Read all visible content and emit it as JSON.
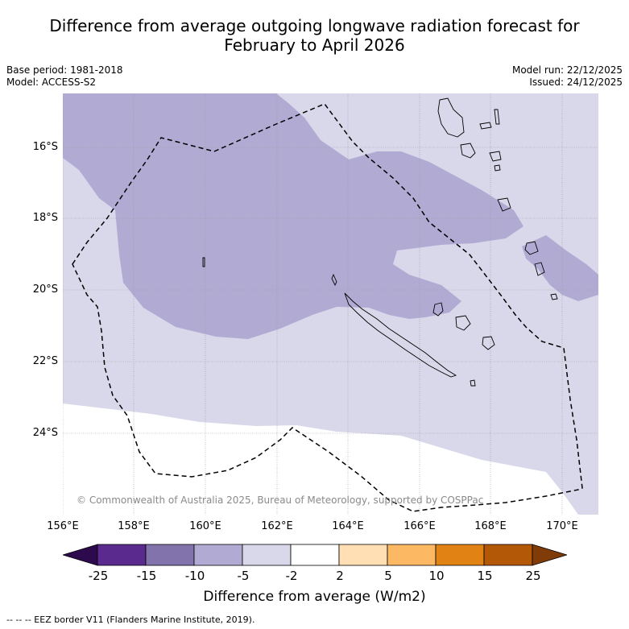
{
  "title_line1": "Difference from average outgoing longwave radiation forecast for",
  "title_line2": "February to April 2026",
  "base_period": "Base period: 1981-2018",
  "model": "Model: ACCESS-S2",
  "model_run": "Model run: 22/12/2025",
  "issued": "Issued: 24/12/2025",
  "copyright": "© Commonwealth of Australia 2025, Bureau of Meteorology, supported by COSPPac",
  "lat_labels": [
    "16°S",
    "18°S",
    "20°S",
    "22°S",
    "24°S"
  ],
  "lon_labels": [
    "156°E",
    "158°E",
    "160°E",
    "162°E",
    "164°E",
    "166°E",
    "168°E",
    "170°E"
  ],
  "colorbar": {
    "ticks": [
      "-25",
      "-15",
      "-10",
      "-5",
      "-2",
      "2",
      "5",
      "10",
      "15",
      "25"
    ],
    "colors": [
      "#2d0a4e",
      "#5a2a8e",
      "#8273ad",
      "#b1abd4",
      "#d8d8ea",
      "#ffffff",
      "#ffdfb3",
      "#fdb863",
      "#e08214",
      "#b35806",
      "#7f3b08"
    ],
    "label": "Difference from average (W/m2)"
  },
  "legend_text": "--  --  -- EEZ border V11 (Flanders Marine Institute, 2019)."
}
